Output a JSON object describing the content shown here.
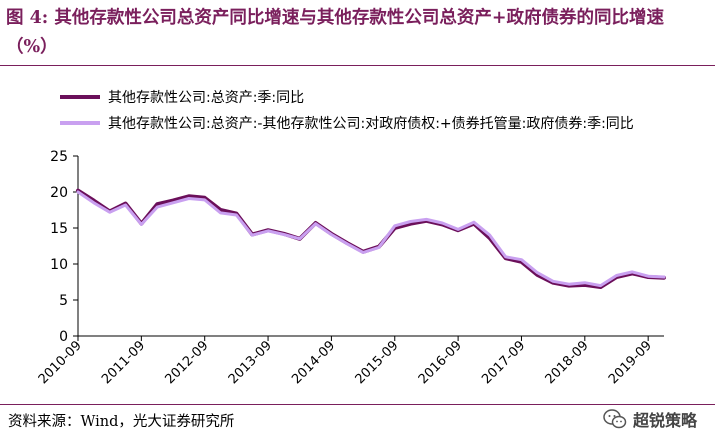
{
  "figure": {
    "title": "图 4: 其他存款性公司总资产同比增速与其他存款性公司总资产+政府债券的同比增速（%）",
    "source": "资料来源：Wind，光大证券研究所",
    "watermark": "超锐策略"
  },
  "chart_data": {
    "type": "line",
    "ylim": [
      0,
      25
    ],
    "yticks": [
      0,
      5,
      10,
      15,
      20,
      25
    ],
    "xticks": [
      "2010-09",
      "2011-09",
      "2012-09",
      "2013-09",
      "2014-09",
      "2015-09",
      "2016-09",
      "2017-09",
      "2018-09",
      "2019-09"
    ],
    "legend_position": "top-left",
    "grid": false,
    "x": [
      "2010-09",
      "2010-12",
      "2011-03",
      "2011-06",
      "2011-09",
      "2011-12",
      "2012-03",
      "2012-06",
      "2012-09",
      "2012-12",
      "2013-03",
      "2013-06",
      "2013-09",
      "2013-12",
      "2014-03",
      "2014-06",
      "2014-09",
      "2014-12",
      "2015-03",
      "2015-06",
      "2015-09",
      "2015-12",
      "2016-03",
      "2016-06",
      "2016-09",
      "2016-12",
      "2017-03",
      "2017-06",
      "2017-09",
      "2017-12",
      "2018-03",
      "2018-06",
      "2018-09",
      "2018-12",
      "2019-03",
      "2019-06",
      "2019-09",
      "2019-12"
    ],
    "series": [
      {
        "name": "其他存款性公司:总资产:季:同比",
        "color": "#6b0f5a",
        "values": [
          20.2,
          18.8,
          17.3,
          18.4,
          15.6,
          18.3,
          18.8,
          19.4,
          19.2,
          17.5,
          17.0,
          14.1,
          14.7,
          14.2,
          13.5,
          15.7,
          14.2,
          12.9,
          11.7,
          12.4,
          15.0,
          15.6,
          16.0,
          15.5,
          14.7,
          15.6,
          13.6,
          10.8,
          10.3,
          8.5,
          7.4,
          7.0,
          7.1,
          6.8,
          8.2,
          8.7,
          8.2,
          8.1
        ]
      },
      {
        "name": "其他存款性公司:总资产:-其他存款性公司:对政府债权:+债券托管量:政府债券:季:同比",
        "color": "#c9a0f0",
        "values": [
          20.0,
          18.5,
          17.2,
          18.2,
          15.5,
          17.9,
          18.5,
          19.1,
          18.9,
          17.1,
          16.8,
          14.0,
          14.6,
          14.1,
          13.5,
          15.6,
          14.1,
          12.8,
          11.6,
          12.3,
          15.3,
          15.9,
          16.2,
          15.7,
          14.8,
          15.8,
          14.0,
          11.0,
          10.6,
          8.8,
          7.6,
          7.2,
          7.4,
          7.0,
          8.4,
          8.9,
          8.3,
          8.2
        ]
      }
    ]
  }
}
